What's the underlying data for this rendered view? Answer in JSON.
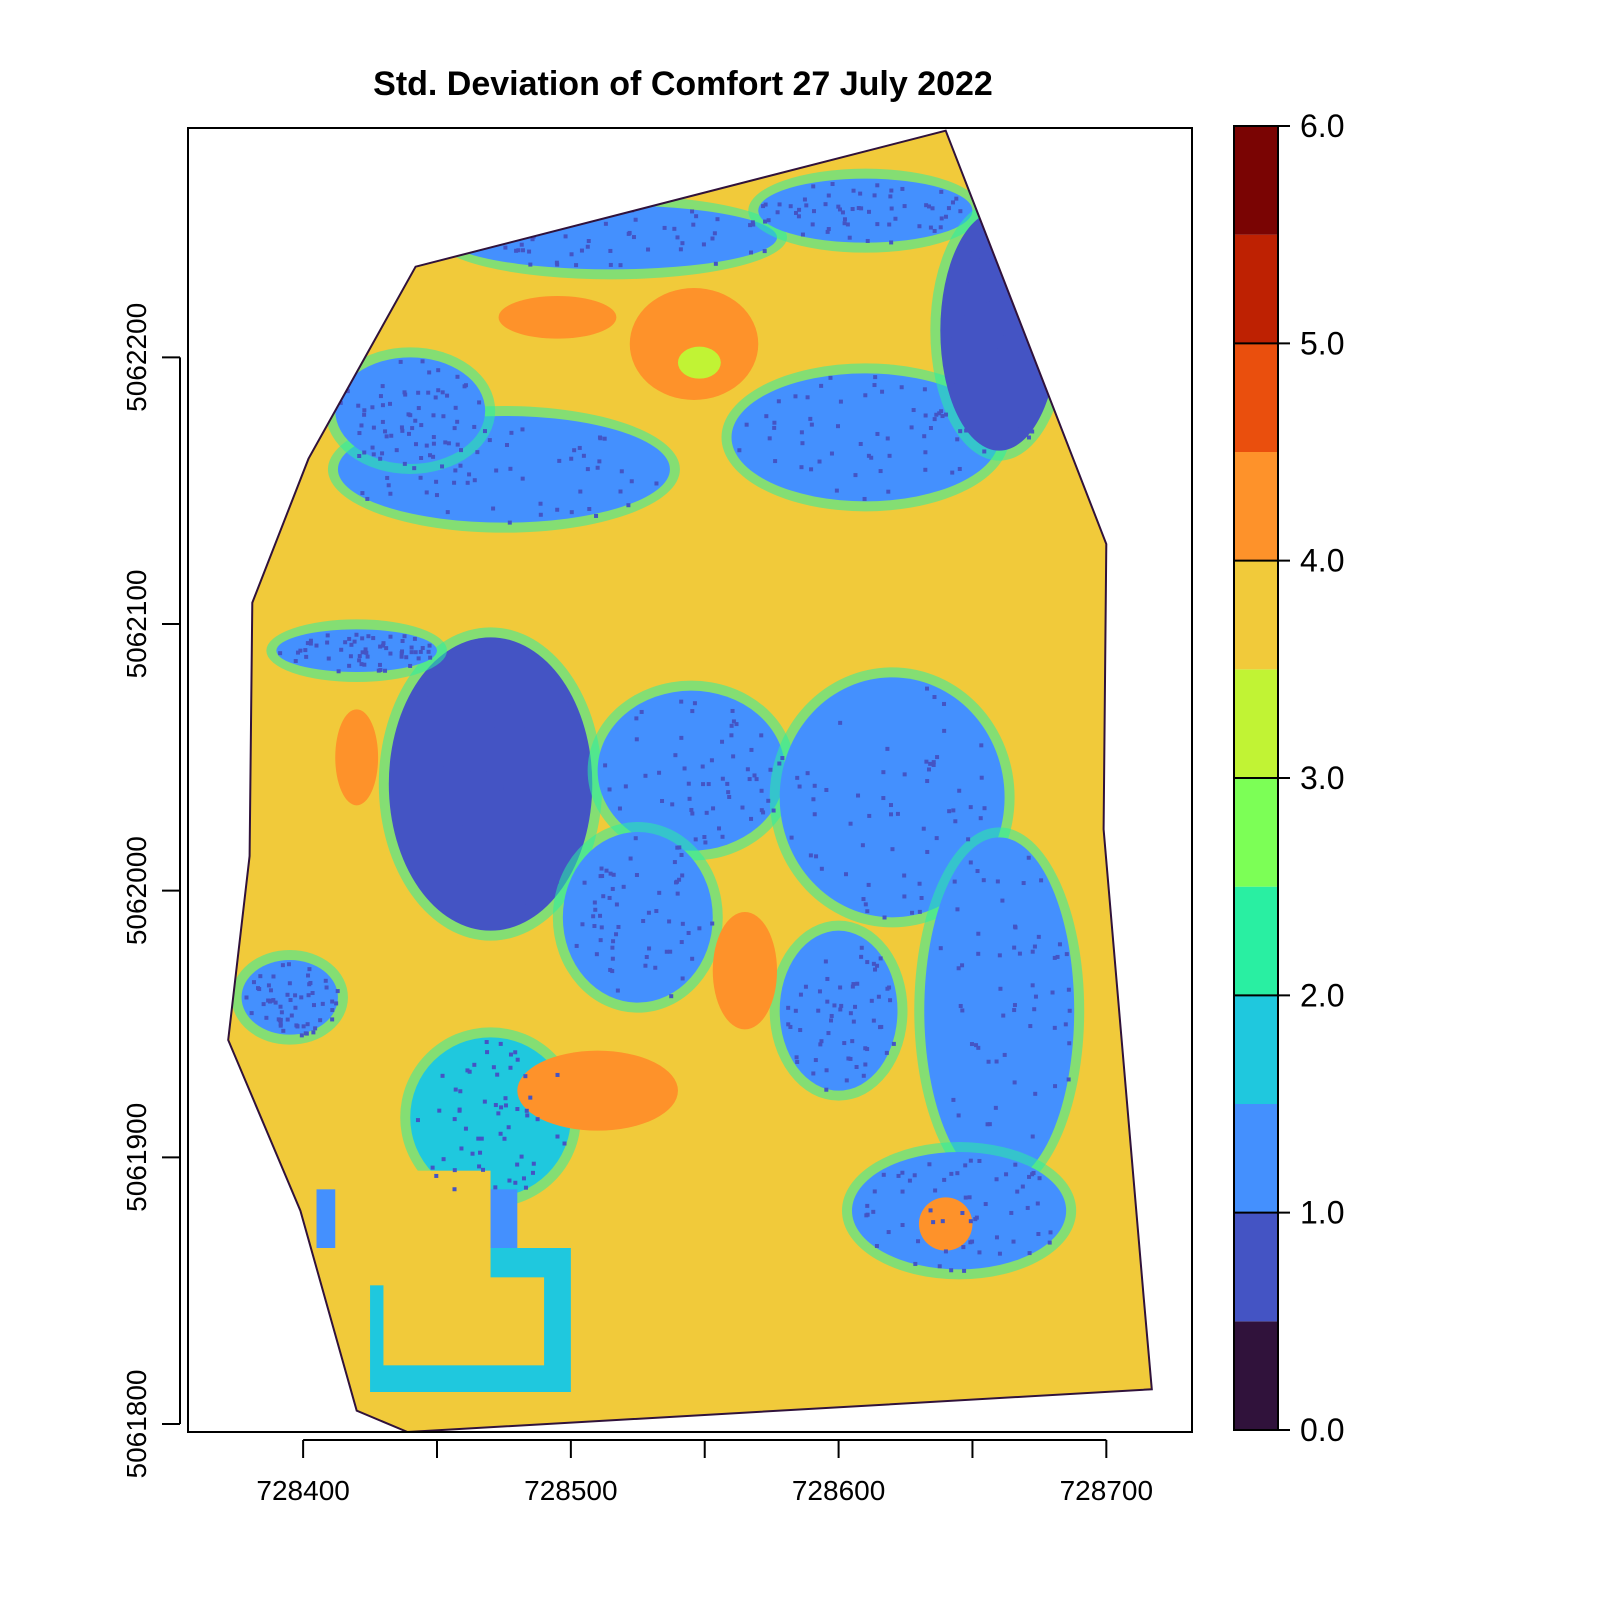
{
  "chart_data": {
    "type": "heatmap",
    "title": "Std. Deviation of Comfort 27 July 2022",
    "xlabel": "",
    "ylabel": "",
    "xlim": [
      728357,
      728732
    ],
    "ylim": [
      5061797,
      5062286
    ],
    "x_ticks": [
      728400,
      728450,
      728500,
      728550,
      728600,
      728650,
      728700
    ],
    "x_tick_labels": [
      "728400",
      "728500",
      "728600",
      "728700"
    ],
    "x_tick_label_values": [
      728400,
      728500,
      728600,
      728700
    ],
    "y_ticks": [
      5061800,
      5061900,
      5062000,
      5062100,
      5062200
    ],
    "y_tick_labels": [
      "5061800",
      "5061900",
      "5062000",
      "5062100",
      "5062200"
    ],
    "legend": {
      "position": "right",
      "range": [
        0.0,
        6.0
      ],
      "ticks": [
        0.0,
        1.0,
        2.0,
        3.0,
        4.0,
        5.0,
        6.0
      ],
      "tick_labels": [
        "0.0",
        "1.0",
        "2.0",
        "3.0",
        "4.0",
        "5.0",
        "6.0"
      ],
      "bins": [
        {
          "from": 0.0,
          "to": 0.5,
          "color": "#30123b"
        },
        {
          "from": 0.5,
          "to": 1.0,
          "color": "#4454c4"
        },
        {
          "from": 1.0,
          "to": 1.5,
          "color": "#4490fe"
        },
        {
          "from": 1.5,
          "to": 2.0,
          "color": "#1fc8de"
        },
        {
          "from": 2.0,
          "to": 2.5,
          "color": "#29efa2"
        },
        {
          "from": 2.5,
          "to": 3.0,
          "color": "#7cff56"
        },
        {
          "from": 3.0,
          "to": 3.5,
          "color": "#c1f334"
        },
        {
          "from": 3.5,
          "to": 4.0,
          "color": "#f1ca3a"
        },
        {
          "from": 4.0,
          "to": 4.5,
          "color": "#fe922a"
        },
        {
          "from": 4.5,
          "to": 5.0,
          "color": "#ea4f0d"
        },
        {
          "from": 5.0,
          "to": 5.5,
          "color": "#be2102"
        },
        {
          "from": 5.5,
          "to": 6.0,
          "color": "#7a0403"
        }
      ]
    },
    "boundary": [
      [
        728439,
        5061797
      ],
      [
        728420,
        5061805
      ],
      [
        728399,
        5061880
      ],
      [
        728372,
        5061944
      ],
      [
        728380,
        5062013
      ],
      [
        728381,
        5062108
      ],
      [
        728402,
        5062162
      ],
      [
        728442,
        5062234
      ],
      [
        728640,
        5062285
      ],
      [
        728700,
        5062130
      ],
      [
        728699,
        5062023
      ],
      [
        728714,
        5061847
      ],
      [
        728717,
        5061813
      ]
    ],
    "regions": [
      {
        "kind": "ellipse",
        "cx": 728546,
        "cy": 5062205,
        "rx": 24,
        "ry": 21,
        "value": 4.2
      },
      {
        "kind": "ellipse",
        "cx": 728548,
        "cy": 5062198,
        "rx": 8,
        "ry": 6,
        "value": 3.3
      },
      {
        "kind": "ellipse",
        "cx": 728515,
        "cy": 5062245,
        "rx": 62,
        "ry": 12,
        "value": 1.2
      },
      {
        "kind": "ellipse",
        "cx": 728610,
        "cy": 5062255,
        "rx": 40,
        "ry": 12,
        "value": 1.3
      },
      {
        "kind": "ellipse",
        "cx": 728475,
        "cy": 5062158,
        "rx": 62,
        "ry": 20,
        "value": 1.1
      },
      {
        "kind": "ellipse",
        "cx": 728610,
        "cy": 5062170,
        "rx": 50,
        "ry": 24,
        "value": 1.2
      },
      {
        "kind": "ellipse",
        "cx": 728660,
        "cy": 5062210,
        "rx": 22,
        "ry": 45,
        "value": 0.9
      },
      {
        "kind": "ellipse",
        "cx": 728440,
        "cy": 5062180,
        "rx": 28,
        "ry": 20,
        "value": 1.4
      },
      {
        "kind": "ellipse",
        "cx": 728470,
        "cy": 5062040,
        "rx": 38,
        "ry": 55,
        "value": 0.9
      },
      {
        "kind": "ellipse",
        "cx": 728545,
        "cy": 5062045,
        "rx": 35,
        "ry": 30,
        "value": 1.2
      },
      {
        "kind": "ellipse",
        "cx": 728620,
        "cy": 5062035,
        "rx": 42,
        "ry": 45,
        "value": 1.1
      },
      {
        "kind": "ellipse",
        "cx": 728660,
        "cy": 5061955,
        "rx": 28,
        "ry": 65,
        "value": 1.0
      },
      {
        "kind": "ellipse",
        "cx": 728525,
        "cy": 5061990,
        "rx": 28,
        "ry": 32,
        "value": 1.3
      },
      {
        "kind": "ellipse",
        "cx": 728600,
        "cy": 5061955,
        "rx": 22,
        "ry": 30,
        "value": 1.3
      },
      {
        "kind": "ellipse",
        "cx": 728645,
        "cy": 5061880,
        "rx": 40,
        "ry": 22,
        "value": 1.2
      },
      {
        "kind": "ellipse",
        "cx": 728470,
        "cy": 5061915,
        "rx": 30,
        "ry": 30,
        "value": 1.5
      },
      {
        "kind": "ellipse",
        "cx": 728420,
        "cy": 5062090,
        "rx": 30,
        "ry": 8,
        "value": 1.3
      },
      {
        "kind": "ellipse",
        "cx": 728395,
        "cy": 5061960,
        "rx": 18,
        "ry": 14,
        "value": 1.4
      },
      {
        "kind": "ellipse",
        "cx": 728565,
        "cy": 5061970,
        "rx": 12,
        "ry": 22,
        "value": 4.2
      },
      {
        "kind": "ellipse",
        "cx": 728510,
        "cy": 5061925,
        "rx": 30,
        "ry": 15,
        "value": 4.2
      },
      {
        "kind": "ellipse",
        "cx": 728495,
        "cy": 5062215,
        "rx": 22,
        "ry": 8,
        "value": 4.2
      },
      {
        "kind": "ellipse",
        "cx": 728640,
        "cy": 5061875,
        "rx": 10,
        "ry": 10,
        "value": 4.2
      },
      {
        "kind": "ellipse",
        "cx": 728420,
        "cy": 5062050,
        "rx": 8,
        "ry": 18,
        "value": 4.2
      },
      {
        "kind": "rect",
        "x0": 728405,
        "y0": 5061866,
        "x1": 728480,
        "y1": 5061888,
        "value": 1.4
      },
      {
        "kind": "rect",
        "x0": 728425,
        "y0": 5061812,
        "x1": 728500,
        "y1": 5061866,
        "value": 1.6
      },
      {
        "kind": "rect",
        "x0": 728430,
        "y0": 5061822,
        "x1": 728490,
        "y1": 5061855,
        "value": 3.7
      },
      {
        "kind": "rect",
        "x0": 728412,
        "y0": 5061852,
        "x1": 728470,
        "y1": 5061895,
        "value": 3.7
      }
    ]
  }
}
